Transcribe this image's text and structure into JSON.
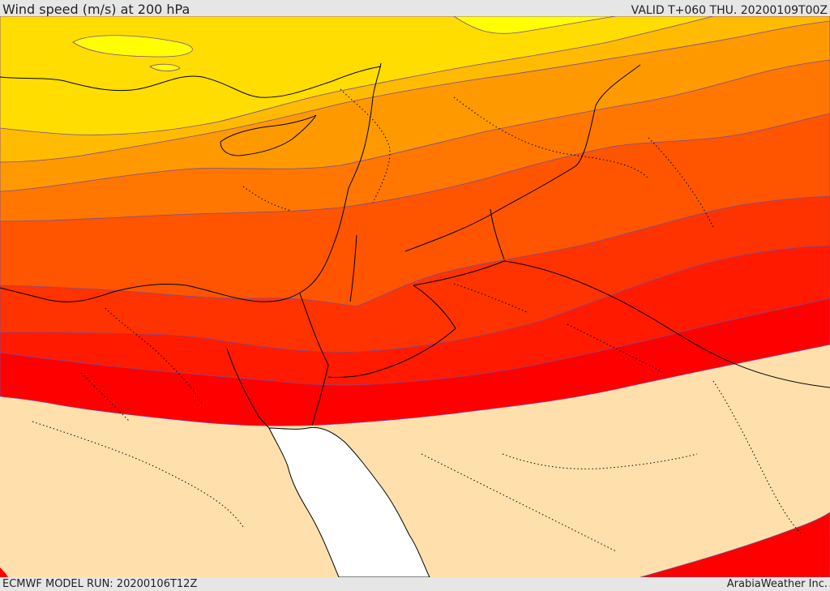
{
  "header": {
    "title": "Wind speed (m/s) at 200 hPa",
    "valid": "VALID T+060 THU. 20200109T00Z"
  },
  "footer": {
    "model_run": "ECMWF MODEL RUN: 20200106T12Z",
    "credit": "ArabiaWeather Inc."
  },
  "map": {
    "field": "wind speed",
    "level": "200 hPa",
    "colors": {
      "band_1": "#ffff00",
      "band_2": "#ffdd00",
      "band_3": "#ffbb00",
      "band_4": "#ff9900",
      "band_5": "#ff7700",
      "band_6": "#ff5500",
      "band_7": "#ff3300",
      "band_8": "#ff1a00",
      "band_9": "#ff0000",
      "below_threshold": "#ffe0ac",
      "sea": "#ffffff"
    }
  }
}
